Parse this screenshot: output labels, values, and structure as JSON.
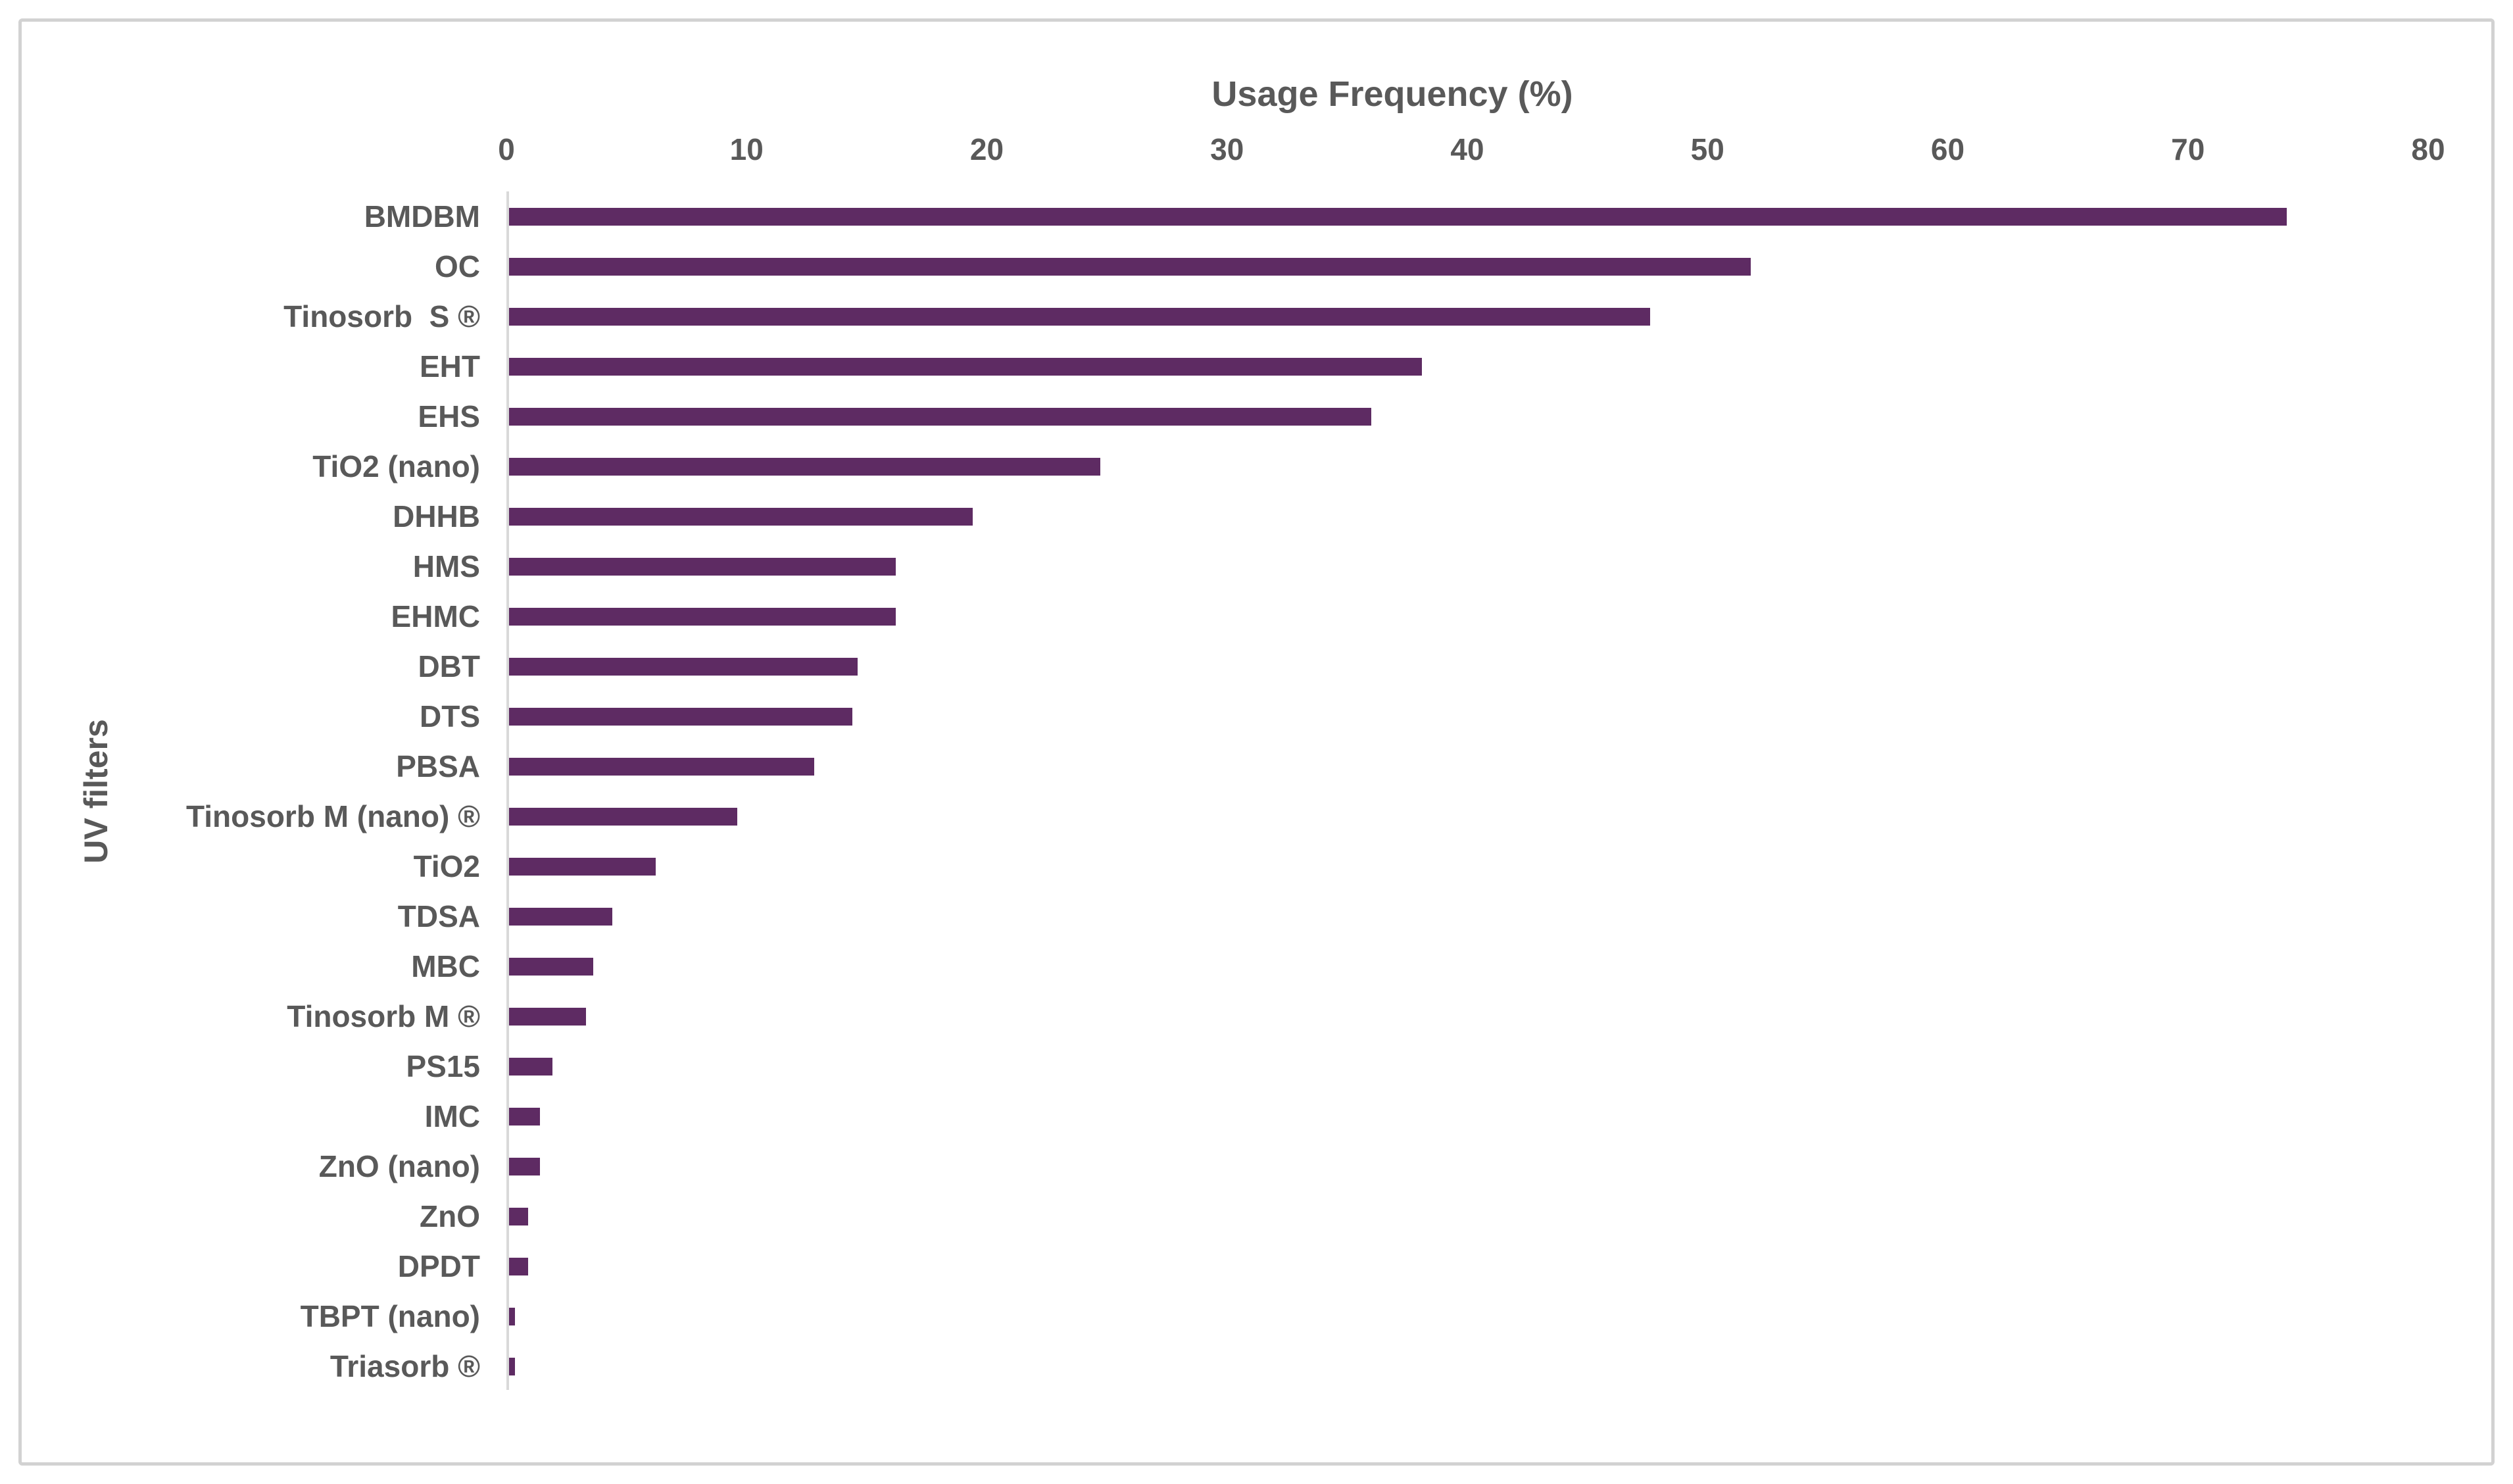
{
  "figure": {
    "x_axis_title": "Usage Frequency (%)",
    "y_axis_title": "UV filters"
  },
  "colors": {
    "bar_fill": "#5e2b63",
    "label_text": "#595959",
    "axis_line": "#d9d9d9",
    "frame_border": "#d2d2d2"
  },
  "chart_data": {
    "type": "bar",
    "orientation": "horizontal",
    "title": "",
    "xlabel": "Usage Frequency (%)",
    "ylabel": "UV filters",
    "xlim": [
      0,
      80
    ],
    "xticks": [
      0,
      10,
      20,
      30,
      40,
      50,
      60,
      70,
      80
    ],
    "grid": false,
    "legend": false,
    "categories": [
      "BMDBM",
      "OC",
      "Tinosorb  S ®",
      "EHT",
      "EHS",
      "TiO2 (nano)",
      "DHHB",
      "HMS",
      "EHMC",
      "DBT",
      "DTS",
      "PBSA",
      "Tinosorb M (nano) ®",
      "TiO2",
      "TDSA",
      "MBC",
      "Tinosorb M ®",
      "PS15",
      "IMC",
      "ZnO (nano)",
      "ZnO",
      "DPDT",
      "TBPT (nano)",
      "Triasorb ®"
    ],
    "values": [
      74,
      51.7,
      47.5,
      38,
      35.9,
      24.6,
      19.3,
      16.1,
      16.1,
      14.5,
      14.3,
      12.7,
      9.5,
      6.1,
      4.3,
      3.5,
      3.2,
      1.8,
      1.3,
      1.3,
      0.8,
      0.8,
      0.25,
      0.25
    ]
  }
}
